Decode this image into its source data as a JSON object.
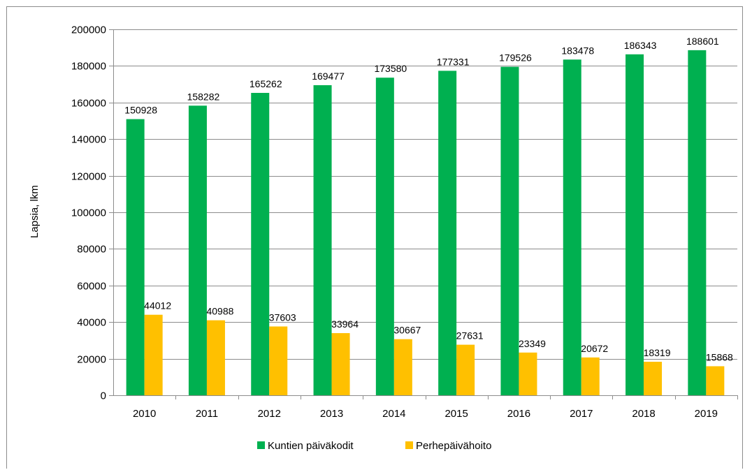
{
  "chart_data": {
    "type": "bar",
    "title": "",
    "xlabel": "",
    "ylabel": "Lapsia, lkm",
    "categories": [
      "2010",
      "2011",
      "2012",
      "2013",
      "2014",
      "2015",
      "2016",
      "2017",
      "2018",
      "2019"
    ],
    "series": [
      {
        "name": "Kuntien päiväkodit",
        "color": "#00b050",
        "values": [
          150928,
          158282,
          165262,
          169477,
          173580,
          177331,
          179526,
          183478,
          186343,
          188601
        ]
      },
      {
        "name": "Perhepäivähoito",
        "color": "#ffc000",
        "values": [
          44012,
          40988,
          37603,
          33964,
          30667,
          27631,
          23349,
          20672,
          18319,
          15868
        ]
      }
    ],
    "ylim": [
      0,
      200000
    ],
    "yticks": [
      "0",
      "20000",
      "40000",
      "60000",
      "80000",
      "100000",
      "120000",
      "140000",
      "160000",
      "180000",
      "200000"
    ],
    "grid": true,
    "legend_position": "bottom"
  }
}
